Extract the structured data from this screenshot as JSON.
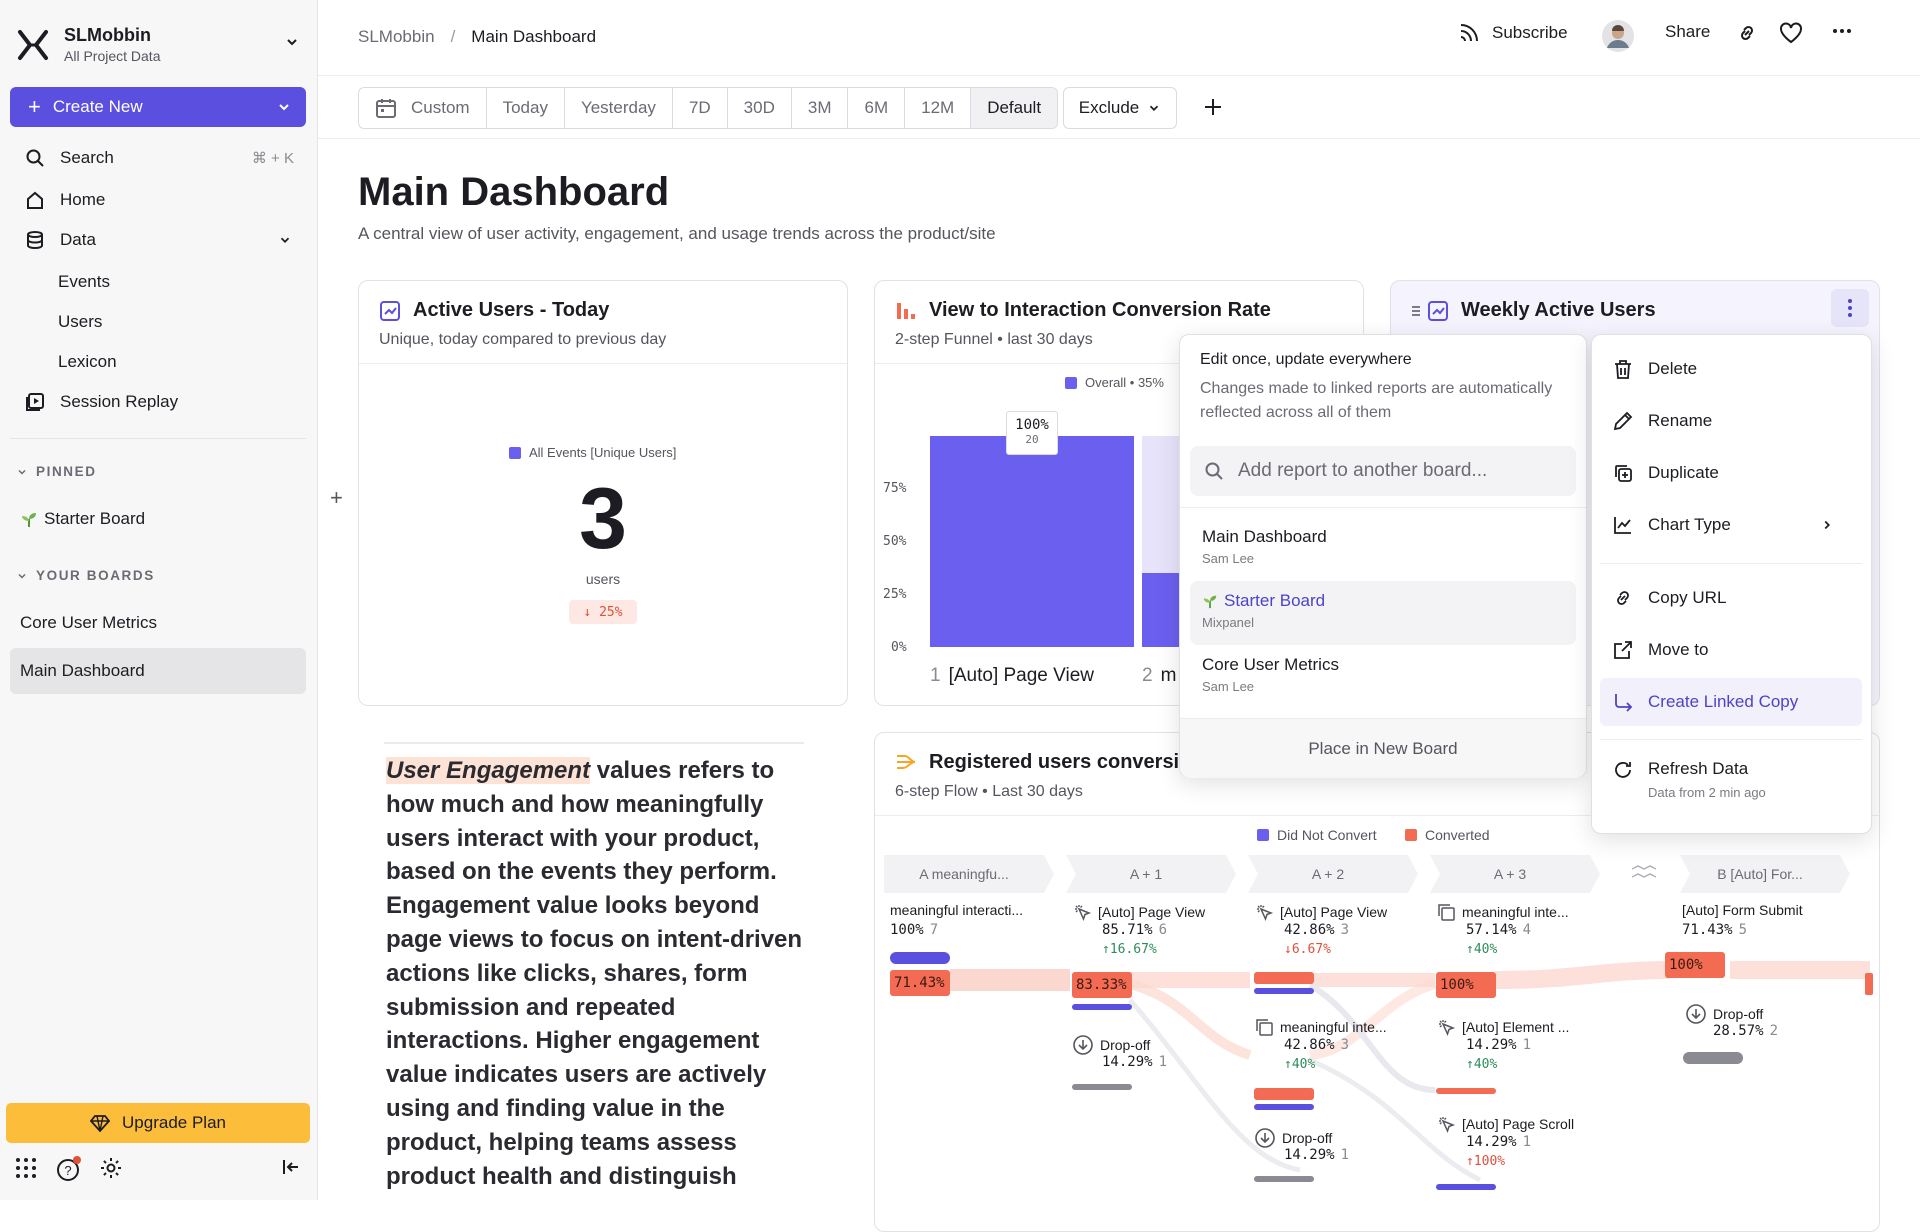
{
  "workspace": {
    "name": "SLMobbin",
    "subtitle": "All Project Data"
  },
  "sidebar": {
    "create_label": "Create New",
    "search_label": "Search",
    "search_shortcut": "⌘ + K",
    "home_label": "Home",
    "data_label": "Data",
    "events_label": "Events",
    "users_label": "Users",
    "lexicon_label": "Lexicon",
    "replay_label": "Session Replay",
    "pinned_header": "PINNED",
    "pinned_items": [
      "Starter Board"
    ],
    "boards_header": "YOUR BOARDS",
    "boards": [
      "Core User Metrics",
      "Main Dashboard"
    ],
    "upgrade_label": "Upgrade Plan"
  },
  "breadcrumb": {
    "root": "SLMobbin",
    "sep": "/",
    "current": "Main Dashboard"
  },
  "top_actions": {
    "subscribe": "Subscribe",
    "share": "Share"
  },
  "filters": {
    "ranges": [
      "Custom",
      "Today",
      "Yesterday",
      "7D",
      "30D",
      "3M",
      "6M",
      "12M",
      "Default"
    ],
    "active": "Default",
    "exclude_label": "Exclude"
  },
  "page": {
    "title": "Main Dashboard",
    "description": "A central view of user activity, engagement, and usage trends across the product/site"
  },
  "card_active": {
    "title": "Active Users - Today",
    "subtitle": "Unique, today compared to previous day",
    "legend": "All Events [Unique Users]",
    "value": "3",
    "unit": "users",
    "delta": "↓ 25%"
  },
  "card_conv": {
    "title": "View to Interaction Conversion Rate",
    "subtitle": "2-step Funnel • last 30 days",
    "legend": "Overall • 35%",
    "ticks": [
      "75%",
      "50%",
      "25%",
      "0%"
    ],
    "bar_label": "100%",
    "bar_count": "20",
    "x_label_1": "1",
    "x_text_1": "[Auto] Page View",
    "x_label_2": "2",
    "x_text_2": "m"
  },
  "card_weekly": {
    "title": "Weekly Active Users"
  },
  "text_block": {
    "highlight": "User Engagement",
    "body": " values refers to how much and how meaningfully users interact with your product, based on the events they perform. Engagement value looks beyond page views to focus on intent-driven actions like clicks, shares, form submission and repeated interactions. Higher engagement value indicates users are actively using and finding value in the product, helping teams assess product health and distinguish"
  },
  "card_flow": {
    "title": "Registered users conversion",
    "subtitle": "6-step Flow • Last 30 days",
    "legend": [
      "Did Not Convert",
      "Converted"
    ],
    "steps": [
      "A  meaningfu...",
      "A + 1",
      "A + 2",
      "A + 3",
      "B  [Auto] For..."
    ],
    "col1": {
      "name": "meaningful interacti...",
      "pct": "100%",
      "count": "7",
      "pill": "71.43%"
    },
    "col2": {
      "name": "[Auto] Page View",
      "pct": "85.71%",
      "count": "6",
      "delta": "↑16.67%",
      "pill": "83.33%",
      "drop_name": "Drop-off",
      "drop_pct": "14.29%",
      "drop_count": "1"
    },
    "col3": {
      "name": "[Auto] Page View",
      "pct": "42.86%",
      "count": "3",
      "delta": "↓6.67%",
      "n2": "meaningful inte...",
      "p2": "42.86%",
      "c2": "3",
      "d2": "↑40%",
      "drop_name": "Drop-off",
      "drop_pct": "14.29%",
      "drop_count": "1"
    },
    "col4": {
      "name": "meaningful inte...",
      "pct": "57.14%",
      "count": "4",
      "delta": "↑40%",
      "pill": "100%",
      "n2": "[Auto] Element ...",
      "p2": "14.29%",
      "c2": "1",
      "d2": "↑40%",
      "n3": "[Auto] Page Scroll",
      "p3": "14.29%",
      "c3": "1",
      "d3": "↑100%"
    },
    "col5": {
      "name": "[Auto] Form Submit",
      "pct": "71.43%",
      "count": "5",
      "pill": "100%",
      "drop_name": "Drop-off",
      "drop_pct": "28.57%",
      "drop_count": "2"
    }
  },
  "link_popup": {
    "title": "Edit once, update everywhere",
    "subtitle": "Changes made to linked reports are automatically reflected across all of them",
    "search_placeholder": "Add report to another board...",
    "boards": [
      {
        "name": "Main Dashboard",
        "owner": "Sam Lee"
      },
      {
        "name": "Starter Board",
        "owner": "Mixpanel"
      },
      {
        "name": "Core User Metrics",
        "owner": "Sam Lee"
      }
    ],
    "place_label": "Place in New Board"
  },
  "context_menu": {
    "delete": "Delete",
    "rename": "Rename",
    "duplicate": "Duplicate",
    "chart_type": "Chart Type",
    "copy_url": "Copy URL",
    "move_to": "Move to",
    "linked_copy": "Create Linked Copy",
    "refresh": "Refresh Data",
    "refresh_sub": "Data from 2 min ago"
  },
  "colors": {
    "accent": "#5b4fe0",
    "converted": "#f36b52",
    "upgrade": "#fbbd3a"
  }
}
